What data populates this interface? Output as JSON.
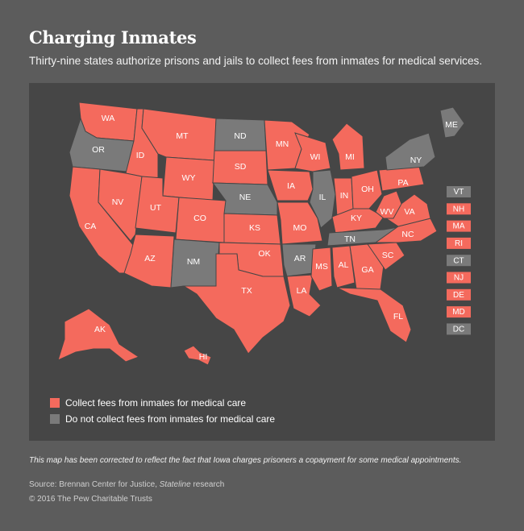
{
  "title": "Charging Inmates",
  "subtitle": "Thirty-nine states authorize prisons and jails to collect fees from inmates for medical services.",
  "colors": {
    "collect": "#f46a5d",
    "not_collect": "#7a7a7a",
    "background": "#5c5c5c",
    "panel": "#464646"
  },
  "legend": [
    {
      "label": "Collect fees from inmates for medical care",
      "status": "collect"
    },
    {
      "label": "Do not collect fees from inmates for medical care",
      "status": "not_collect"
    }
  ],
  "states": [
    {
      "code": "WA",
      "status": "collect"
    },
    {
      "code": "OR",
      "status": "not_collect"
    },
    {
      "code": "CA",
      "status": "collect"
    },
    {
      "code": "ID",
      "status": "collect"
    },
    {
      "code": "NV",
      "status": "collect"
    },
    {
      "code": "MT",
      "status": "collect"
    },
    {
      "code": "WY",
      "status": "collect"
    },
    {
      "code": "UT",
      "status": "collect"
    },
    {
      "code": "AZ",
      "status": "collect"
    },
    {
      "code": "CO",
      "status": "collect"
    },
    {
      "code": "NM",
      "status": "not_collect"
    },
    {
      "code": "ND",
      "status": "not_collect"
    },
    {
      "code": "SD",
      "status": "collect"
    },
    {
      "code": "NE",
      "status": "not_collect"
    },
    {
      "code": "KS",
      "status": "collect"
    },
    {
      "code": "OK",
      "status": "collect"
    },
    {
      "code": "TX",
      "status": "collect"
    },
    {
      "code": "MN",
      "status": "collect"
    },
    {
      "code": "IA",
      "status": "collect"
    },
    {
      "code": "MO",
      "status": "collect"
    },
    {
      "code": "AR",
      "status": "not_collect"
    },
    {
      "code": "LA",
      "status": "collect"
    },
    {
      "code": "WI",
      "status": "collect"
    },
    {
      "code": "IL",
      "status": "not_collect"
    },
    {
      "code": "MI",
      "status": "collect"
    },
    {
      "code": "IN",
      "status": "collect"
    },
    {
      "code": "OH",
      "status": "collect"
    },
    {
      "code": "KY",
      "status": "collect"
    },
    {
      "code": "TN",
      "status": "not_collect"
    },
    {
      "code": "MS",
      "status": "collect"
    },
    {
      "code": "AL",
      "status": "collect"
    },
    {
      "code": "GA",
      "status": "collect"
    },
    {
      "code": "FL",
      "status": "collect"
    },
    {
      "code": "SC",
      "status": "collect"
    },
    {
      "code": "NC",
      "status": "collect"
    },
    {
      "code": "VA",
      "status": "collect"
    },
    {
      "code": "WV",
      "status": "collect"
    },
    {
      "code": "PA",
      "status": "collect"
    },
    {
      "code": "NY",
      "status": "not_collect"
    },
    {
      "code": "ME",
      "status": "not_collect"
    },
    {
      "code": "AK",
      "status": "collect"
    },
    {
      "code": "HI",
      "status": "collect"
    }
  ],
  "small_states": [
    {
      "code": "VT",
      "status": "not_collect"
    },
    {
      "code": "NH",
      "status": "collect"
    },
    {
      "code": "MA",
      "status": "collect"
    },
    {
      "code": "RI",
      "status": "collect"
    },
    {
      "code": "CT",
      "status": "not_collect"
    },
    {
      "code": "NJ",
      "status": "collect"
    },
    {
      "code": "DE",
      "status": "collect"
    },
    {
      "code": "MD",
      "status": "collect"
    },
    {
      "code": "DC",
      "status": "not_collect"
    }
  ],
  "note": "This map has been corrected to reflect the fact that Iowa charges prisoners a copayment for some medical appointments.",
  "source_prefix": "Source: Brennan Center for Justice, ",
  "source_italic": "Stateline",
  "source_suffix": " research",
  "copyright": "© 2016 The Pew Charitable Trusts"
}
